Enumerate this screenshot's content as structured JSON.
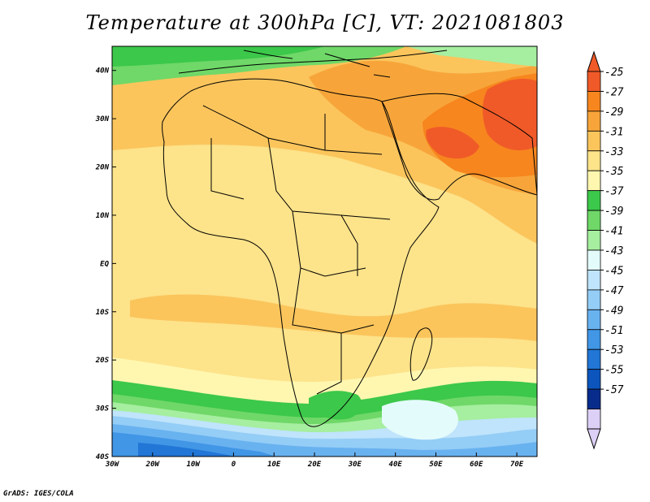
{
  "title": "Temperature at 300hPa [C], VT: 2021081803",
  "footer": "GrADS: IGES/COLA",
  "map": {
    "lon_range": [
      -30,
      75
    ],
    "lat_range": [
      -40,
      45
    ],
    "lon_ticks": [
      {
        "value": -30,
        "label": "30W"
      },
      {
        "value": -20,
        "label": "20W"
      },
      {
        "value": -10,
        "label": "10W"
      },
      {
        "value": 0,
        "label": "0"
      },
      {
        "value": 10,
        "label": "10E"
      },
      {
        "value": 20,
        "label": "20E"
      },
      {
        "value": 30,
        "label": "30E"
      },
      {
        "value": 40,
        "label": "40E"
      },
      {
        "value": 50,
        "label": "50E"
      },
      {
        "value": 60,
        "label": "60E"
      },
      {
        "value": 70,
        "label": "70E"
      }
    ],
    "lat_ticks": [
      {
        "value": 40,
        "label": "40N"
      },
      {
        "value": 30,
        "label": "30N"
      },
      {
        "value": 20,
        "label": "20N"
      },
      {
        "value": 10,
        "label": "10N"
      },
      {
        "value": 0,
        "label": "EQ"
      },
      {
        "value": -10,
        "label": "10S"
      },
      {
        "value": -20,
        "label": "20S"
      },
      {
        "value": -30,
        "label": "30S"
      },
      {
        "value": -40,
        "label": "40S"
      }
    ]
  },
  "colorbar": {
    "labels": [
      "-25",
      "-27",
      "-29",
      "-31",
      "-33",
      "-35",
      "-37",
      "-39",
      "-41",
      "-43",
      "-45",
      "-47",
      "-49",
      "-51",
      "-53",
      "-55",
      "-57"
    ],
    "colors": [
      "#f05a28",
      "#f7861e",
      "#f7a53a",
      "#fbc55c",
      "#fde38a",
      "#fff7b0",
      "#3cc84a",
      "#6fd868",
      "#a6eea0",
      "#e4fbfb",
      "#bfe4fb",
      "#94cdf6",
      "#69b2f0",
      "#4196e6",
      "#2176d6",
      "#0c55bd",
      "#082c8c",
      "#dcd0f6"
    ],
    "top_arrow_color": "#f05a28",
    "bottom_arrow_color": "#dcd0f6"
  }
}
